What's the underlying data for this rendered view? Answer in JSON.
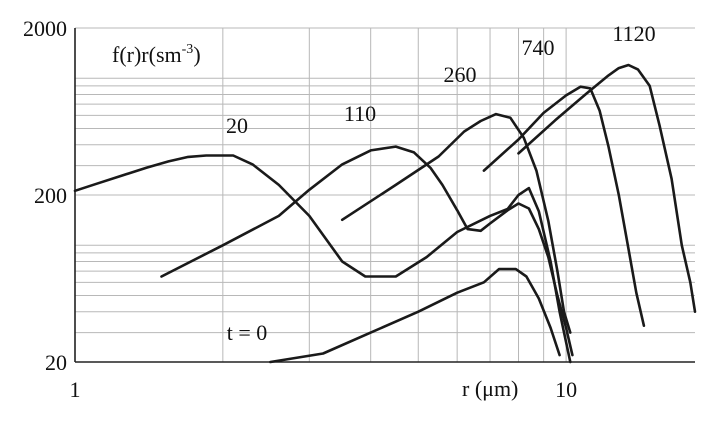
{
  "chart_data": {
    "type": "line",
    "x_scale": "log",
    "y_scale": "log",
    "xlim": [
      1,
      18.3
    ],
    "ylim": [
      20,
      2000
    ],
    "xlabel": "r (μm)",
    "ylabel": "f(r)r(sm",
    "ylabel_sup": "-3",
    "ylabel_close": ")",
    "grid": true,
    "x_ticks": [
      {
        "value": 1,
        "label": "1"
      },
      {
        "value": 10,
        "label": "10"
      }
    ],
    "y_ticks": [
      {
        "value": 20,
        "label": "20"
      },
      {
        "value": 200,
        "label": "200"
      },
      {
        "value": 2000,
        "label": "2000"
      }
    ],
    "series": [
      {
        "name": "t = 0",
        "points": [
          [
            2.5,
            20
          ],
          [
            3.2,
            22.5
          ],
          [
            4.0,
            30
          ],
          [
            5.0,
            40
          ],
          [
            6.0,
            52
          ],
          [
            6.8,
            60
          ],
          [
            7.3,
            72
          ],
          [
            7.9,
            72
          ],
          [
            8.3,
            65
          ],
          [
            8.8,
            48
          ],
          [
            9.3,
            32
          ],
          [
            9.7,
            22
          ]
        ]
      },
      {
        "name": "20",
        "points": [
          [
            1.0,
            212
          ],
          [
            1.1,
            232
          ],
          [
            1.25,
            262
          ],
          [
            1.4,
            292
          ],
          [
            1.55,
            318
          ],
          [
            1.7,
            338
          ],
          [
            1.85,
            345
          ],
          [
            2.1,
            345
          ],
          [
            2.3,
            305
          ],
          [
            2.6,
            230
          ],
          [
            3.0,
            150
          ],
          [
            3.5,
            80
          ],
          [
            3.9,
            65
          ],
          [
            4.5,
            65
          ],
          [
            5.2,
            85
          ],
          [
            6.0,
            120
          ],
          [
            7.0,
            150
          ],
          [
            7.6,
            165
          ],
          [
            8.0,
            200
          ],
          [
            8.4,
            220
          ],
          [
            8.8,
            160
          ],
          [
            9.3,
            80
          ],
          [
            9.7,
            40
          ],
          [
            10.2,
            20
          ]
        ]
      },
      {
        "name": "110",
        "points": [
          [
            1.5,
            65
          ],
          [
            2.0,
            100
          ],
          [
            2.6,
            150
          ],
          [
            3.0,
            215
          ],
          [
            3.5,
            305
          ],
          [
            4.0,
            370
          ],
          [
            4.5,
            390
          ],
          [
            4.9,
            360
          ],
          [
            5.3,
            290
          ],
          [
            5.6,
            230
          ],
          [
            6.0,
            162
          ],
          [
            6.3,
            125
          ],
          [
            6.7,
            122
          ],
          [
            7.0,
            135
          ],
          [
            7.6,
            162
          ],
          [
            8.0,
            178
          ],
          [
            8.4,
            166
          ],
          [
            8.8,
            125
          ],
          [
            9.2,
            85
          ],
          [
            9.6,
            50
          ],
          [
            10.0,
            32
          ],
          [
            10.3,
            22
          ]
        ]
      },
      {
        "name": "260",
        "points": [
          [
            3.5,
            142
          ],
          [
            4.5,
            230
          ],
          [
            5.5,
            340
          ],
          [
            6.2,
            480
          ],
          [
            6.7,
            555
          ],
          [
            7.2,
            610
          ],
          [
            7.7,
            580
          ],
          [
            8.2,
            440
          ],
          [
            8.7,
            280
          ],
          [
            9.2,
            140
          ],
          [
            9.6,
            70
          ],
          [
            9.9,
            40
          ],
          [
            10.2,
            30
          ]
        ]
      },
      {
        "name": "740",
        "points": [
          [
            6.8,
            280
          ],
          [
            8.0,
            430
          ],
          [
            9.0,
            620
          ],
          [
            10.0,
            790
          ],
          [
            10.7,
            890
          ],
          [
            11.2,
            870
          ],
          [
            11.7,
            640
          ],
          [
            12.2,
            390
          ],
          [
            12.8,
            200
          ],
          [
            13.4,
            95
          ],
          [
            13.9,
            52
          ],
          [
            14.4,
            33
          ]
        ]
      },
      {
        "name": "1120",
        "points": [
          [
            8.0,
            355
          ],
          [
            9.5,
            560
          ],
          [
            11.0,
            810
          ],
          [
            12.2,
            1040
          ],
          [
            12.8,
            1150
          ],
          [
            13.4,
            1200
          ],
          [
            14.0,
            1130
          ],
          [
            14.8,
            900
          ],
          [
            15.5,
            520
          ],
          [
            16.4,
            250
          ],
          [
            17.2,
            100
          ],
          [
            17.9,
            60
          ],
          [
            18.3,
            40
          ]
        ]
      }
    ],
    "series_labels": [
      {
        "text": "t = 0"
      },
      {
        "text": "20"
      },
      {
        "text": "110"
      },
      {
        "text": "260"
      },
      {
        "text": "740"
      },
      {
        "text": "1120"
      }
    ]
  }
}
